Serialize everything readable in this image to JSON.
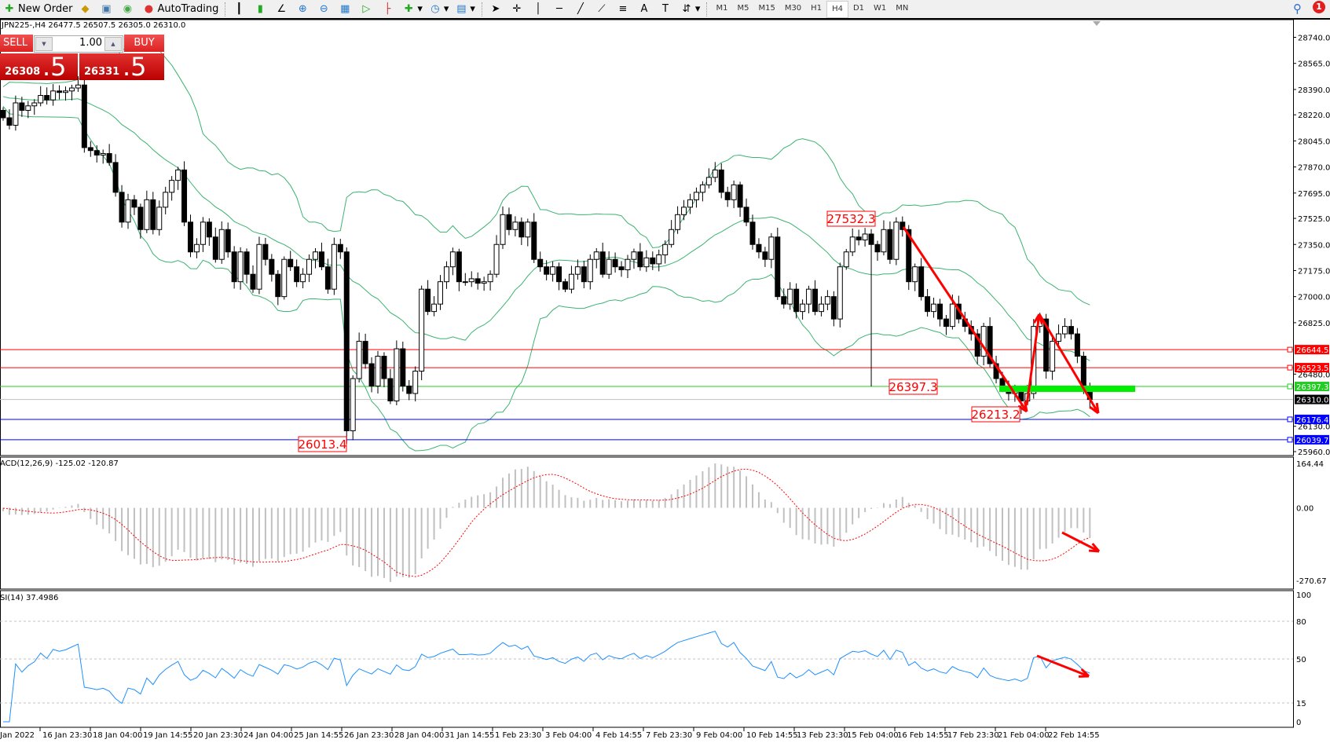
{
  "toolbar": {
    "new_order": "New Order",
    "autotrading": "AutoTrading",
    "timeframes": [
      "M1",
      "M5",
      "M15",
      "M30",
      "H1",
      "H4",
      "D1",
      "W1",
      "MN"
    ],
    "active_timeframe": "H4",
    "notification_count": "1"
  },
  "header": "JPN225-,H4  26477.5 26507.5 26305.0 26310.0",
  "one_click": {
    "sell_label": "SELL",
    "buy_label": "BUY",
    "lot": "1.00",
    "sell_price_main": "26308",
    "sell_price_frac": ".5",
    "buy_price_main": "26331",
    "buy_price_frac": ".5"
  },
  "colors": {
    "bull": "#ffffff",
    "bear": "#000000",
    "bands": "#3cb371",
    "resistance": "#ff0000",
    "support": "#0000ff",
    "pivot": "#22cc22",
    "bid": "#c0c0c0",
    "annotation": "#ff0000",
    "macd_hist": "#c0c0c0",
    "macd_signal": "#ff0000",
    "rsi": "#1e90ff"
  },
  "chart_data": {
    "type": "candlestick",
    "symbol": "JPN225-",
    "timeframe": "H4",
    "ylim": [
      25960,
      28740
    ],
    "price_ticks": [
      "28740.0",
      "28565.0",
      "28390.0",
      "28220.0",
      "28045.0",
      "27870.0",
      "27695.0",
      "27525.0",
      "27350.0",
      "27175.0",
      "27000.0",
      "26825.0",
      "26480.0",
      "26130.0",
      "25960.0"
    ],
    "time_labels": [
      "Jan 2022",
      "16 Jan 23:30",
      "18 Jan 04:00",
      "19 Jan 14:55",
      "20 Jan 23:30",
      "24 Jan 04:00",
      "25 Jan 14:55",
      "26 Jan 23:30",
      "28 Jan 04:00",
      "31 Jan 14:55",
      "1 Feb 23:30",
      "3 Feb 04:00",
      "4 Feb 14:55",
      "7 Feb 23:30",
      "9 Feb 04:00",
      "10 Feb 14:55",
      "13 Feb 23:30",
      "15 Feb 04:00",
      "16 Feb 14:55",
      "17 Feb 23:30",
      "21 Feb 04:00",
      "22 Feb 14:55"
    ],
    "closes": [
      28200,
      28150,
      28300,
      28250,
      28280,
      28300,
      28350,
      28320,
      28380,
      28370,
      28380,
      28400,
      28420,
      28000,
      27980,
      27950,
      27960,
      27900,
      27700,
      27500,
      27650,
      27600,
      27450,
      27650,
      27450,
      27600,
      27700,
      27780,
      27850,
      27500,
      27300,
      27350,
      27500,
      27400,
      27250,
      27450,
      27300,
      27100,
      27300,
      27150,
      27050,
      27350,
      27250,
      27150,
      27000,
      27250,
      27200,
      27100,
      27150,
      27250,
      27300,
      27200,
      27050,
      27350,
      27300,
      26100,
      26450,
      26700,
      26550,
      26400,
      26600,
      26450,
      26300,
      26650,
      26400,
      26350,
      26500,
      27050,
      26900,
      26950,
      27100,
      27200,
      27300,
      27100,
      27100,
      27120,
      27090,
      27100,
      27150,
      27350,
      27550,
      27450,
      27500,
      27400,
      27500,
      27250,
      27200,
      27150,
      27200,
      27100,
      27050,
      27150,
      27200,
      27100,
      27250,
      27300,
      27150,
      27250,
      27200,
      27180,
      27250,
      27300,
      27200,
      27260,
      27220,
      27280,
      27350,
      27450,
      27550,
      27600,
      27650,
      27700,
      27750,
      27800,
      27850,
      27700,
      27650,
      27750,
      27600,
      27500,
      27350,
      27300,
      27250,
      27400,
      27000,
      26950,
      27050,
      26900,
      26950,
      27050,
      26900,
      26950,
      27000,
      26850,
      27200,
      27300,
      27400,
      27380,
      27420,
      27350,
      27300,
      27450,
      27250,
      27500,
      27450,
      27100,
      27200,
      27000,
      26900,
      26950,
      26850,
      26800,
      26950,
      26850,
      26800,
      26750,
      26600,
      26800,
      26550,
      26450,
      26400,
      26350,
      26380,
      26300,
      26350,
      26800,
      26850,
      26500,
      26700,
      26750,
      26800,
      26750,
      26600,
      26400,
      26310
    ],
    "horizontal_levels": [
      {
        "price": 26644.5,
        "label": "26644.5",
        "role": "resistance"
      },
      {
        "price": 26523.5,
        "label": "26523.5",
        "role": "resistance"
      },
      {
        "price": 26397.3,
        "label": "26397.3",
        "role": "pivot"
      },
      {
        "price": 26310.0,
        "label": "26310.0",
        "role": "bid"
      },
      {
        "price": 26176.4,
        "label": "26176.4",
        "role": "support"
      },
      {
        "price": 26039.7,
        "label": "26039.7",
        "role": "support"
      }
    ],
    "price_labels": [
      {
        "text": "27532.3",
        "bar": 143,
        "price": 27532.3
      },
      {
        "text": "26397.3",
        "bar": 139,
        "price": 26397.3
      },
      {
        "text": "26213.2",
        "bar": 163,
        "price": 26213.2
      },
      {
        "text": "26013.4",
        "bar": 55,
        "price": 26013.4
      }
    ],
    "indicators": {
      "bollinger": {
        "period": 20,
        "deviation": 2
      },
      "macd": {
        "label": "ACD(12,26,9) -125.02 -120.87",
        "ylim": [
          -270.67,
          164.44
        ],
        "ticks": [
          "164.44",
          "0.00",
          "-270.67"
        ]
      },
      "rsi": {
        "label": "SI(14) 37.4986",
        "levels": [
          80,
          50,
          15
        ],
        "ticks": [
          "100",
          "80",
          "50",
          "15",
          "0"
        ]
      }
    }
  }
}
